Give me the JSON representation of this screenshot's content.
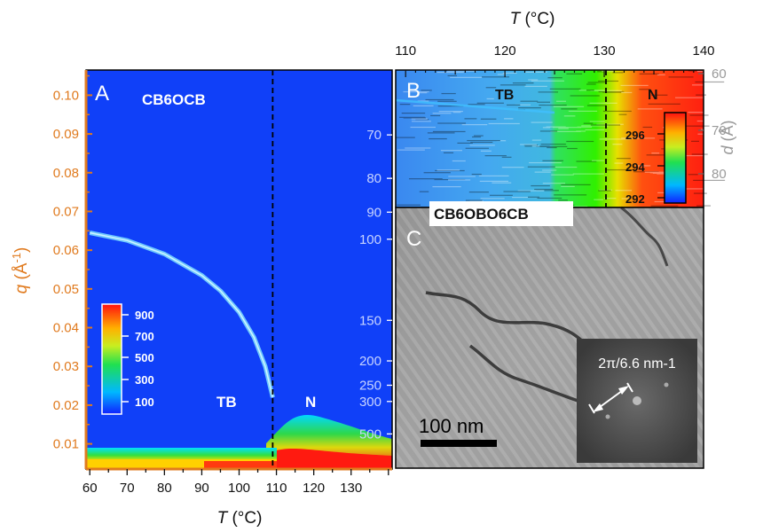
{
  "chart_data": [
    {
      "panel": "A",
      "type": "heatmap",
      "sample": "CB6OCB",
      "xlabel": "T (°C)",
      "ylabel": "q (Å-1)",
      "xlim": [
        59,
        141
      ],
      "ylim": [
        0.0035,
        0.1065
      ],
      "x_ticks": [
        "60",
        "70",
        "80",
        "90",
        "100",
        "110",
        "120",
        "130"
      ],
      "y_ticks": [
        "0.01",
        "0.02",
        "0.03",
        "0.04",
        "0.05",
        "0.06",
        "0.07",
        "0.08",
        "0.09",
        "0.10"
      ],
      "right_axis_d_ticks": [
        "70",
        "80",
        "90",
        "100",
        "150",
        "200",
        "250",
        "300",
        "500"
      ],
      "phase_transition_T": 109,
      "phase_labels": [
        "TB",
        "N"
      ],
      "colorbar": {
        "ticks": [
          "100",
          "300",
          "500",
          "700",
          "900"
        ]
      },
      "tb_peak": {
        "T": [
          60,
          70,
          80,
          90,
          95,
          100,
          104,
          107,
          109
        ],
        "q": [
          0.0645,
          0.0625,
          0.059,
          0.0535,
          0.0495,
          0.044,
          0.0375,
          0.03,
          0.022
        ]
      }
    },
    {
      "panel": "B",
      "type": "heatmap",
      "xlabel": "T (°C)",
      "ylabel": "d (Å)",
      "xlim": [
        109,
        140
      ],
      "x_ticks": [
        "110",
        "120",
        "130",
        "140"
      ],
      "d_ticks": [
        "60",
        "70",
        "80"
      ],
      "phase_transition_T": 130,
      "phase_labels": [
        "TB",
        "N"
      ],
      "colorbar": {
        "ticks": [
          "296",
          "294",
          "292"
        ]
      }
    },
    {
      "panel": "C",
      "type": "image",
      "sample": "CB6OBO6CB",
      "scale_bar": "100 nm",
      "inset_label": "2π/6.6 nm-1"
    }
  ],
  "labels": {
    "panel_a": "A",
    "panel_b": "B",
    "panel_c": "C",
    "sample_a": "CB6OCB",
    "sample_c": "CB6OBO6CB",
    "tb": "TB",
    "n": "N",
    "scale_bar": "100 nm"
  }
}
